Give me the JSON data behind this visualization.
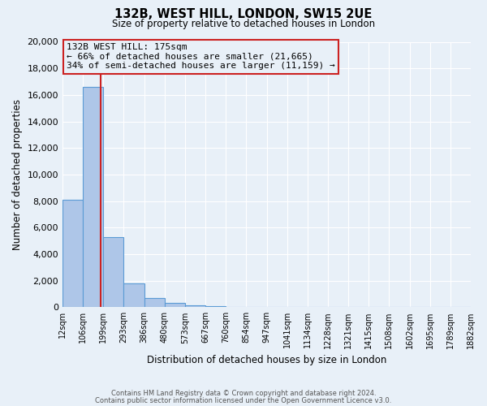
{
  "title": "132B, WEST HILL, LONDON, SW15 2UE",
  "subtitle": "Size of property relative to detached houses in London",
  "xlabel": "Distribution of detached houses by size in London",
  "ylabel": "Number of detached properties",
  "bar_color": "#aec6e8",
  "bar_edge_color": "#5b9bd5",
  "background_color": "#e8f0f8",
  "grid_color": "#c8d8e8",
  "vline_color": "#cc2222",
  "annotation_box_edge": "#cc2222",
  "annotation_title": "132B WEST HILL: 175sqm",
  "annotation_line1": "← 66% of detached houses are smaller (21,665)",
  "annotation_line2": "34% of semi-detached houses are larger (11,159) →",
  "footer_line1": "Contains HM Land Registry data © Crown copyright and database right 2024.",
  "footer_line2": "Contains public sector information licensed under the Open Government Licence v3.0.",
  "bin_labels": [
    "12sqm",
    "106sqm",
    "199sqm",
    "293sqm",
    "386sqm",
    "480sqm",
    "573sqm",
    "667sqm",
    "760sqm",
    "854sqm",
    "947sqm",
    "1041sqm",
    "1134sqm",
    "1228sqm",
    "1321sqm",
    "1415sqm",
    "1508sqm",
    "1602sqm",
    "1695sqm",
    "1789sqm",
    "1882sqm"
  ],
  "bar_heights": [
    8100,
    16600,
    5300,
    1800,
    700,
    300,
    150,
    100,
    0,
    0,
    0,
    0,
    0,
    0,
    0,
    0,
    0,
    0,
    0,
    0
  ],
  "vline_bar_index": 1.85,
  "ylim": [
    0,
    20000
  ],
  "yticks": [
    0,
    2000,
    4000,
    6000,
    8000,
    10000,
    12000,
    14000,
    16000,
    18000,
    20000
  ],
  "n_bars": 20
}
